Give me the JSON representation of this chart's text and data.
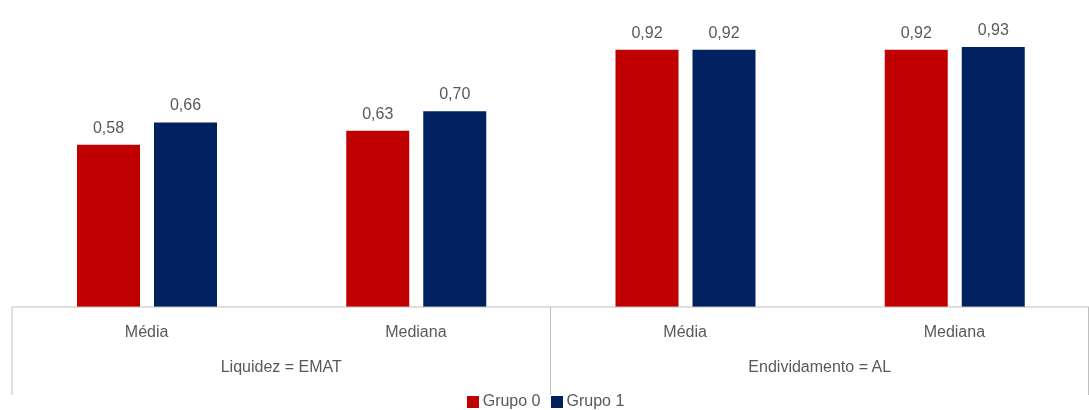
{
  "chart_data": {
    "type": "bar",
    "categories": [
      "Média",
      "Mediana",
      "Média",
      "Mediana"
    ],
    "series": [
      {
        "name": "Grupo 0",
        "color": "#c00000",
        "values": [
          0.58,
          0.63,
          0.92,
          0.92
        ],
        "value_labels": [
          "0,58",
          "0,63",
          "0,92",
          "0,92"
        ]
      },
      {
        "name": "Grupo 1",
        "color": "#002060",
        "values": [
          0.66,
          0.7,
          0.92,
          0.93
        ],
        "value_labels": [
          "0,66",
          "0,70",
          "0,92",
          "0,93"
        ]
      }
    ],
    "annotations": [
      "Liquidez = EMAT",
      "Endividamento = AL"
    ],
    "legend": "bottom",
    "grid": false
  }
}
